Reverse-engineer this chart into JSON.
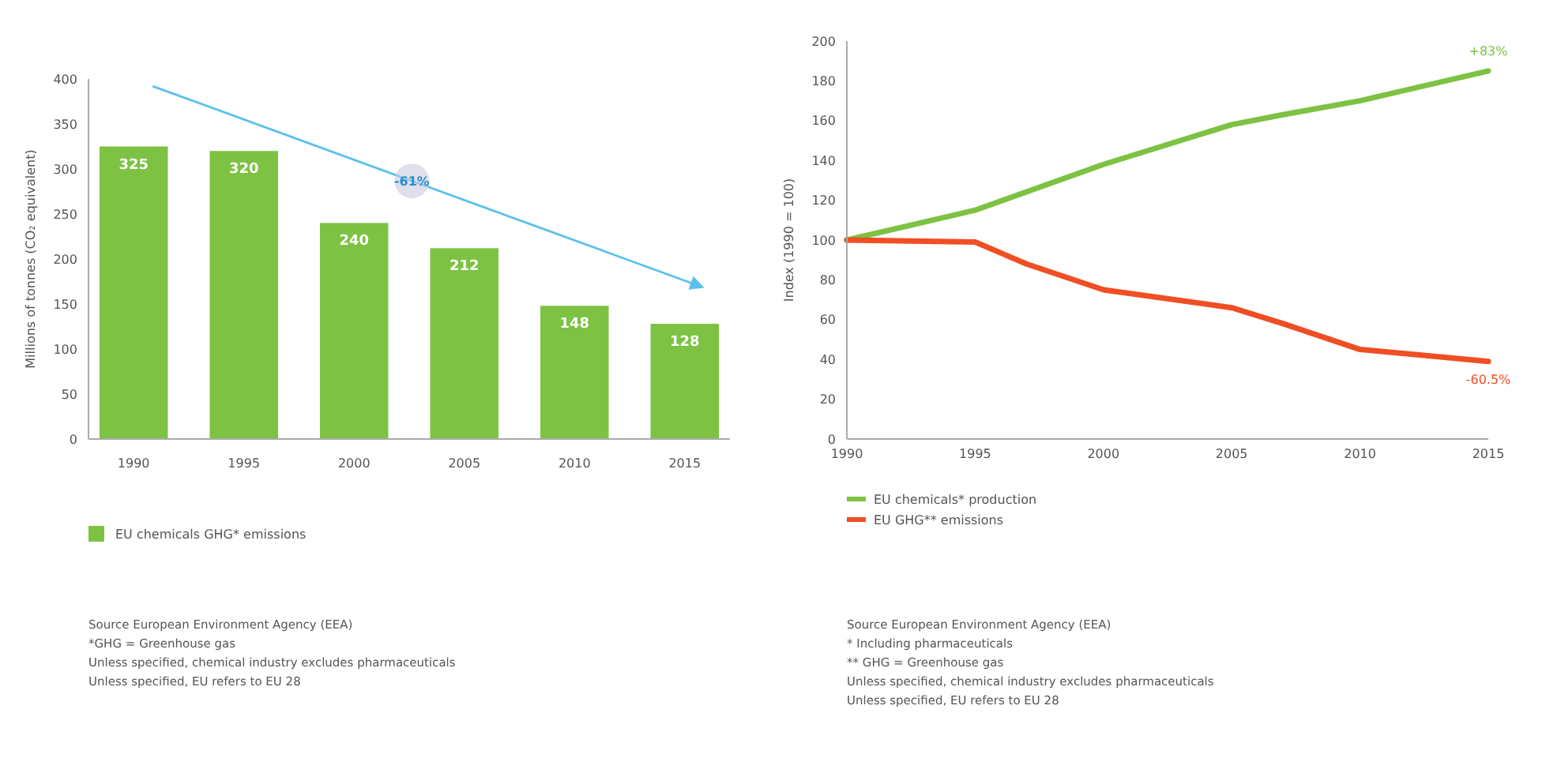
{
  "chart_data": [
    {
      "type": "bar",
      "ylabel": "Millions of tonnes (CO₂ equivalent)",
      "categories": [
        "1990",
        "1995",
        "2000",
        "2005",
        "2010",
        "2015"
      ],
      "series": [
        {
          "name": "EU chemicals GHG* emissions",
          "color": "#7dc242",
          "values": [
            325,
            320,
            240,
            212,
            148,
            128
          ]
        }
      ],
      "ylim": [
        0,
        400
      ],
      "yticks": [
        0,
        50,
        100,
        150,
        200,
        250,
        300,
        350,
        400
      ],
      "data_labels": true,
      "legend": "bottom left",
      "grid": false,
      "annotations": [
        "-61%",
        "Source European Environment Agency (EEA)",
        "*GHG = Greenhouse gas",
        "Unless specified, chemical industry excludes pharmaceuticals",
        "Unless specified, EU refers to EU 28"
      ]
    },
    {
      "type": "line",
      "ylabel": "Index (1990 = 100)",
      "xlim": [
        1990,
        2015
      ],
      "xticks": [
        1990,
        1995,
        2000,
        2005,
        2010,
        2015
      ],
      "ylim": [
        0,
        200
      ],
      "yticks": [
        0,
        20,
        40,
        60,
        80,
        100,
        120,
        140,
        160,
        180,
        200
      ],
      "series": [
        {
          "name": "EU chemicals* production",
          "color": "#7dc242",
          "x": [
            1990,
            1993,
            1995,
            2000,
            2005,
            2007,
            2010,
            2015
          ],
          "values": [
            100,
            109,
            115,
            138,
            158,
            163,
            170,
            185
          ]
        },
        {
          "name": "EU GHG** emissions",
          "color": "#f04e23",
          "x": [
            1990,
            1995,
            1997,
            2000,
            2005,
            2007,
            2010,
            2015
          ],
          "values": [
            100,
            99,
            88,
            75,
            66,
            58,
            45,
            39
          ]
        }
      ],
      "legend": "bottom left",
      "grid": false,
      "marker": "none",
      "annotations": [
        {
          "text": "+83%",
          "x": 2015,
          "y": 185
        },
        {
          "text": "-60.5%",
          "x": 2015,
          "y": 39
        },
        "Source European Environment Agency (EEA)",
        "* Including pharmaceuticals",
        "** GHG = Greenhouse gas",
        "Unless specified, chemical industry excludes pharmaceuticals",
        "Unless specified, EU refers to EU 28"
      ]
    }
  ]
}
